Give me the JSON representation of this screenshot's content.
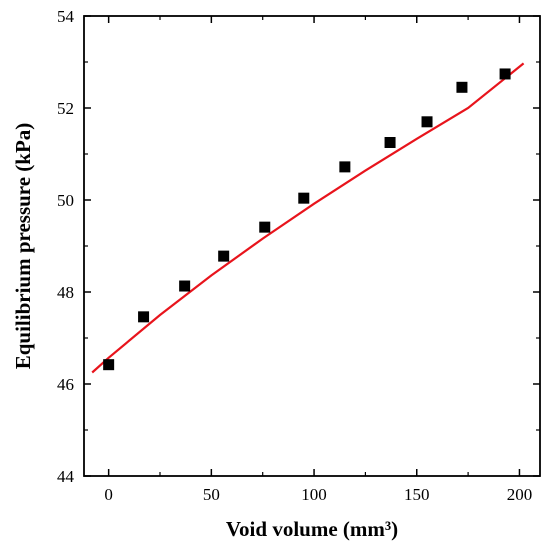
{
  "chart_data": {
    "type": "scatter",
    "xlabel": "Void volume (mm³)",
    "ylabel": "Equilibrium pressure (kPa)",
    "xlim": [
      -12,
      210
    ],
    "ylim": [
      44,
      54
    ],
    "xticks": [
      0,
      50,
      100,
      150,
      200
    ],
    "yticks": [
      44,
      46,
      48,
      50,
      52,
      54
    ],
    "xtick_labels": [
      "0",
      "50",
      "100",
      "150",
      "200"
    ],
    "ytick_labels": [
      "44",
      "46",
      "48",
      "50",
      "52",
      "54"
    ],
    "grid": false,
    "series": [
      {
        "marker": "square",
        "color": "#000000",
        "x": [
          0,
          17,
          37,
          56,
          76,
          95,
          115,
          137,
          155,
          172,
          193
        ],
        "y": [
          46.42,
          47.46,
          48.13,
          48.78,
          49.41,
          50.04,
          50.72,
          51.25,
          51.7,
          52.45,
          52.74
        ]
      }
    ],
    "fit": {
      "type": "line",
      "color": "#e8141c",
      "x": [
        -8,
        0,
        25,
        50,
        75,
        100,
        125,
        150,
        175,
        202
      ],
      "y": [
        46.25,
        46.57,
        47.5,
        48.36,
        49.16,
        49.92,
        50.64,
        51.33,
        52.0,
        52.97
      ]
    }
  }
}
